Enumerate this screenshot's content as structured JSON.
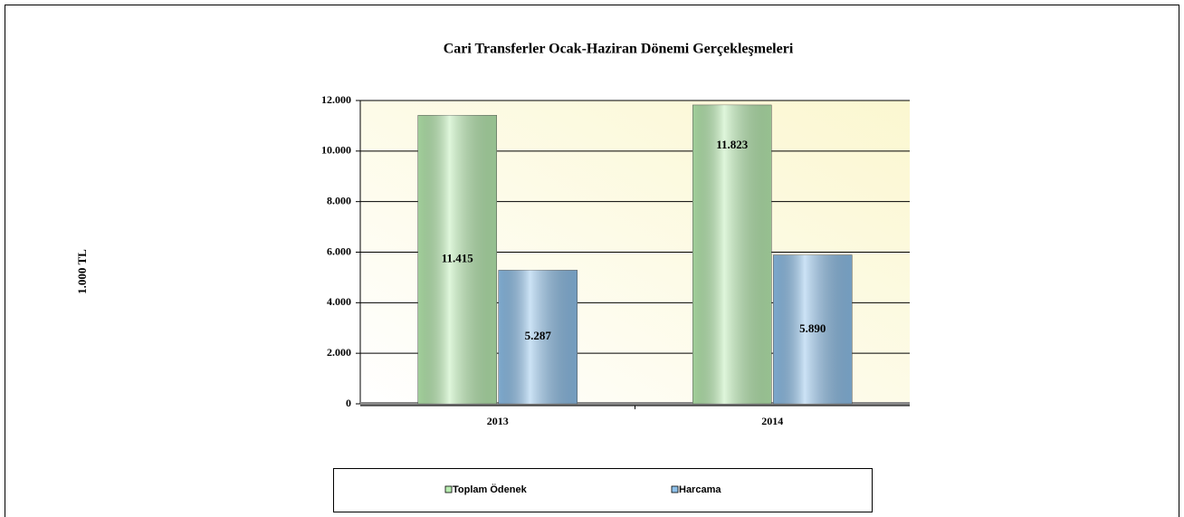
{
  "chart_data": {
    "type": "bar",
    "title": "Cari Transferler Ocak-Haziran Dönemi Gerçekleşmeleri",
    "y_label": "1.000 TL",
    "categories": [
      "2013",
      "2014"
    ],
    "series": [
      {
        "name": "Toplam Ödenek",
        "color": "#b8ecb0",
        "values": [
          11415,
          11823
        ],
        "value_labels": [
          "11.415",
          "11.823"
        ]
      },
      {
        "name": "Harcama",
        "color": "#8ec0ea",
        "values": [
          5287,
          5890
        ],
        "value_labels": [
          "5.287",
          "5.890"
        ]
      }
    ],
    "ylim": [
      0,
      12000
    ],
    "yticks": [
      0,
      {
        "value": 2000,
        "label": "2.000"
      },
      {
        "value": 4000,
        "label": "4.000"
      },
      {
        "value": 6000,
        "label": "6.000"
      },
      {
        "value": 8000,
        "label": "8.000"
      },
      {
        "value": 10000,
        "label": "10.000"
      },
      {
        "value": 12000,
        "label": "12.000"
      }
    ],
    "grid": true,
    "legend": "bottom"
  }
}
